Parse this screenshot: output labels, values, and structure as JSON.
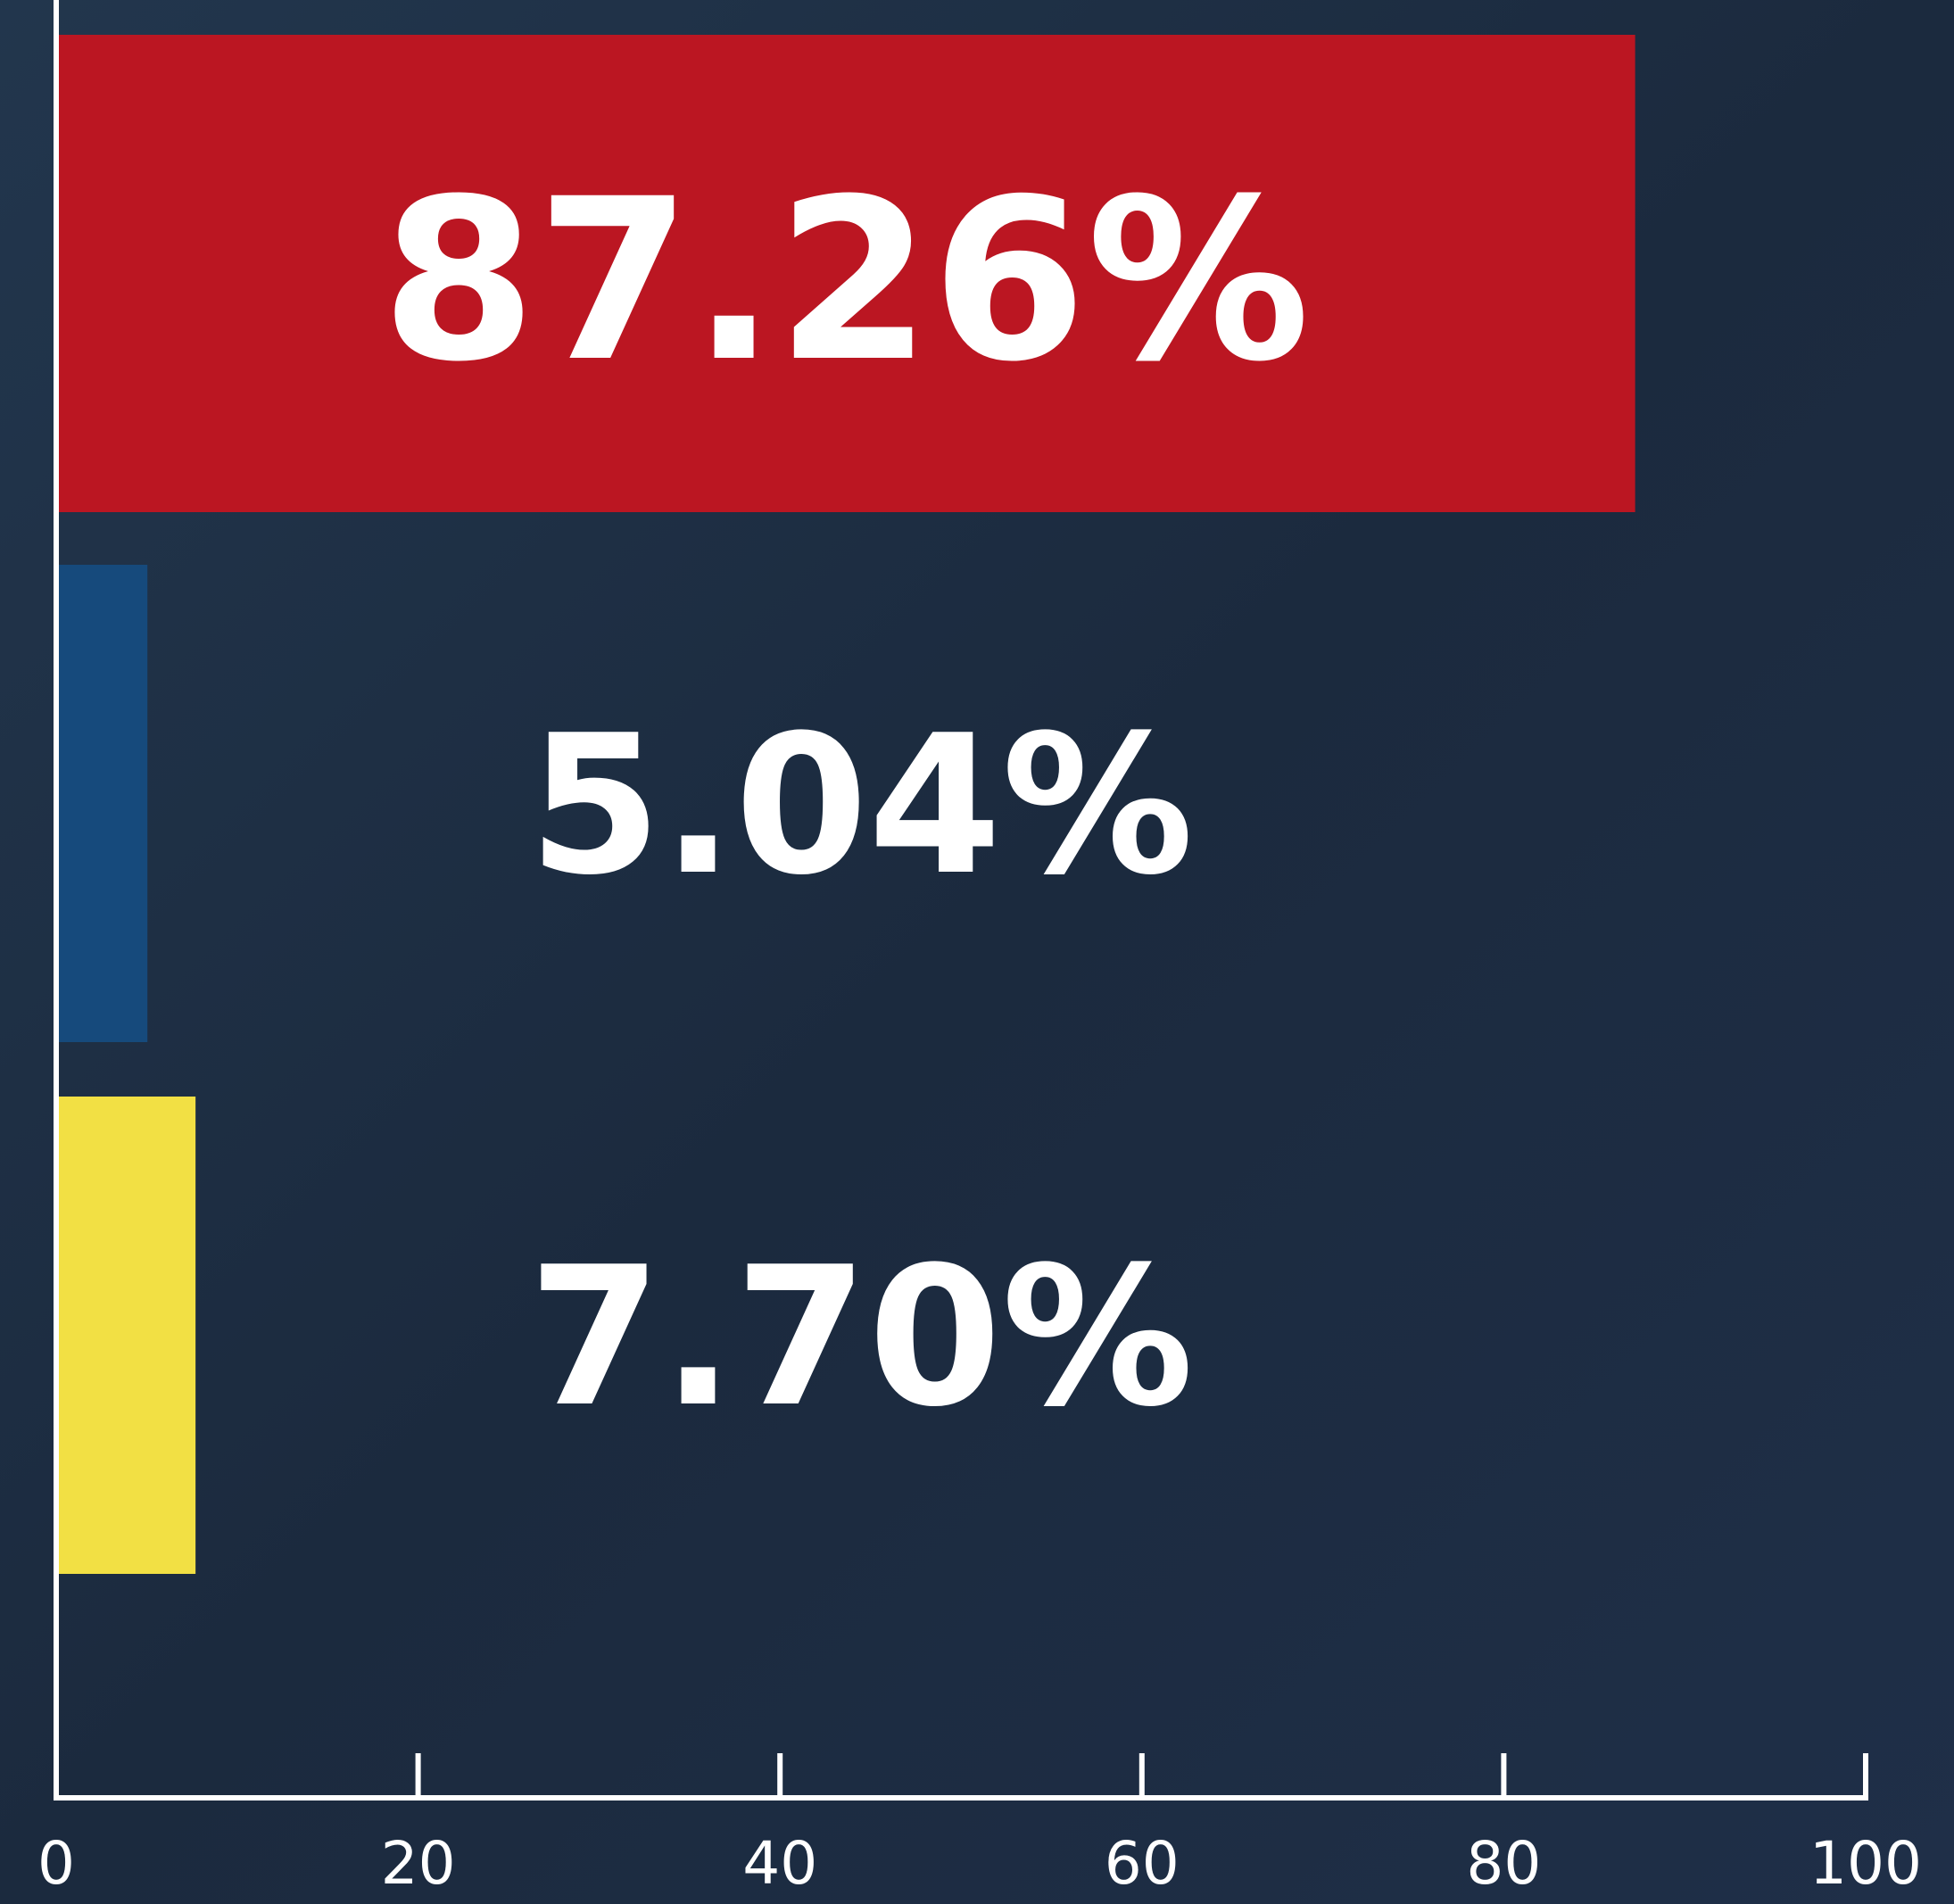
{
  "chart_data": {
    "type": "bar",
    "orientation": "horizontal",
    "categories": [
      null,
      null,
      null
    ],
    "values": [
      87.26,
      5.04,
      7.7
    ],
    "value_labels": [
      "87.26%",
      "5.04%",
      "7.70%"
    ],
    "colors": [
      "#bb1622",
      "#164a7c",
      "#f2e044"
    ],
    "xlim": [
      0,
      100
    ],
    "xticks": [
      0,
      20,
      40,
      60,
      80,
      100
    ],
    "grid": false
  }
}
